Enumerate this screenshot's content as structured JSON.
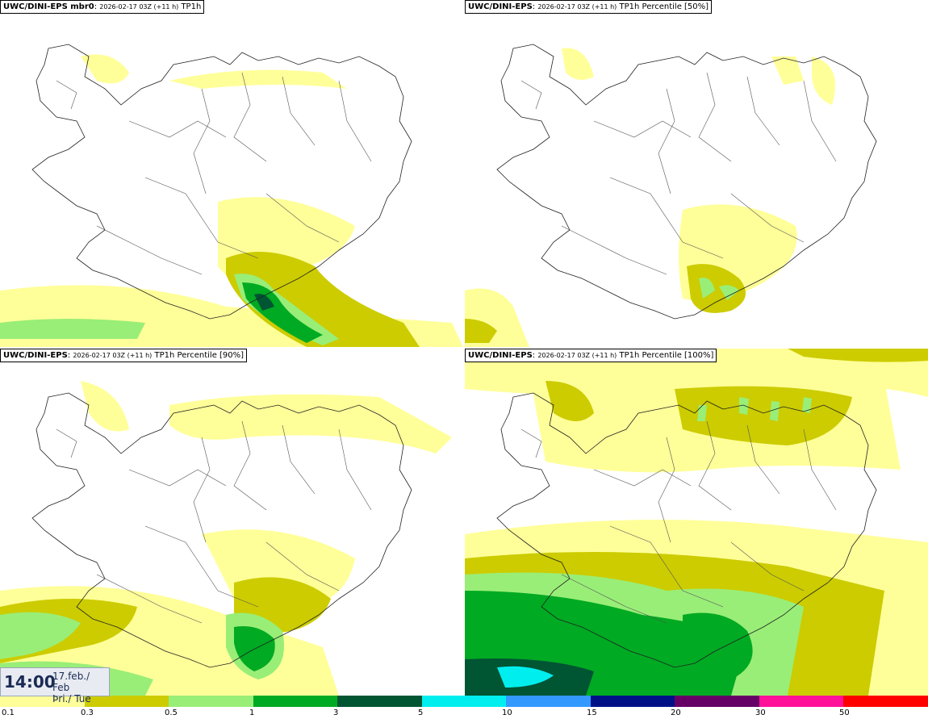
{
  "panels": [
    {
      "model": "UWC/DINI-EPS mbr0",
      "run": "2026-02-17 03Z (+11 h)",
      "field": "TP1h"
    },
    {
      "model": "UWC/DINI-EPS",
      "run": "2026-02-17 03Z (+11 h)",
      "field": "TP1h Percentile [50%]"
    },
    {
      "model": "UWC/DINI-EPS",
      "run": "2026-02-17 03Z (+11 h)",
      "field": "TP1h Percentile [90%]"
    },
    {
      "model": "UWC/DINI-EPS",
      "run": "2026-02-17 03Z (+11 h)",
      "field": "TP1h Percentile [100%]"
    }
  ],
  "valid_time": {
    "time": "14:00",
    "date_line1": "17.feb./ Feb",
    "date_line2": "Þri./ Tue"
  },
  "legend": {
    "colors": [
      "#ffff99",
      "#cccc00",
      "#99ee77",
      "#00aa22",
      "#005533",
      "#00eeee",
      "#3399ff",
      "#001188",
      "#660066",
      "#ff1199",
      "#ff0000"
    ],
    "ticks": [
      "0.1",
      "0.3",
      "0.5",
      "1",
      "3",
      "5",
      "10",
      "15",
      "20",
      "30",
      "50"
    ]
  }
}
